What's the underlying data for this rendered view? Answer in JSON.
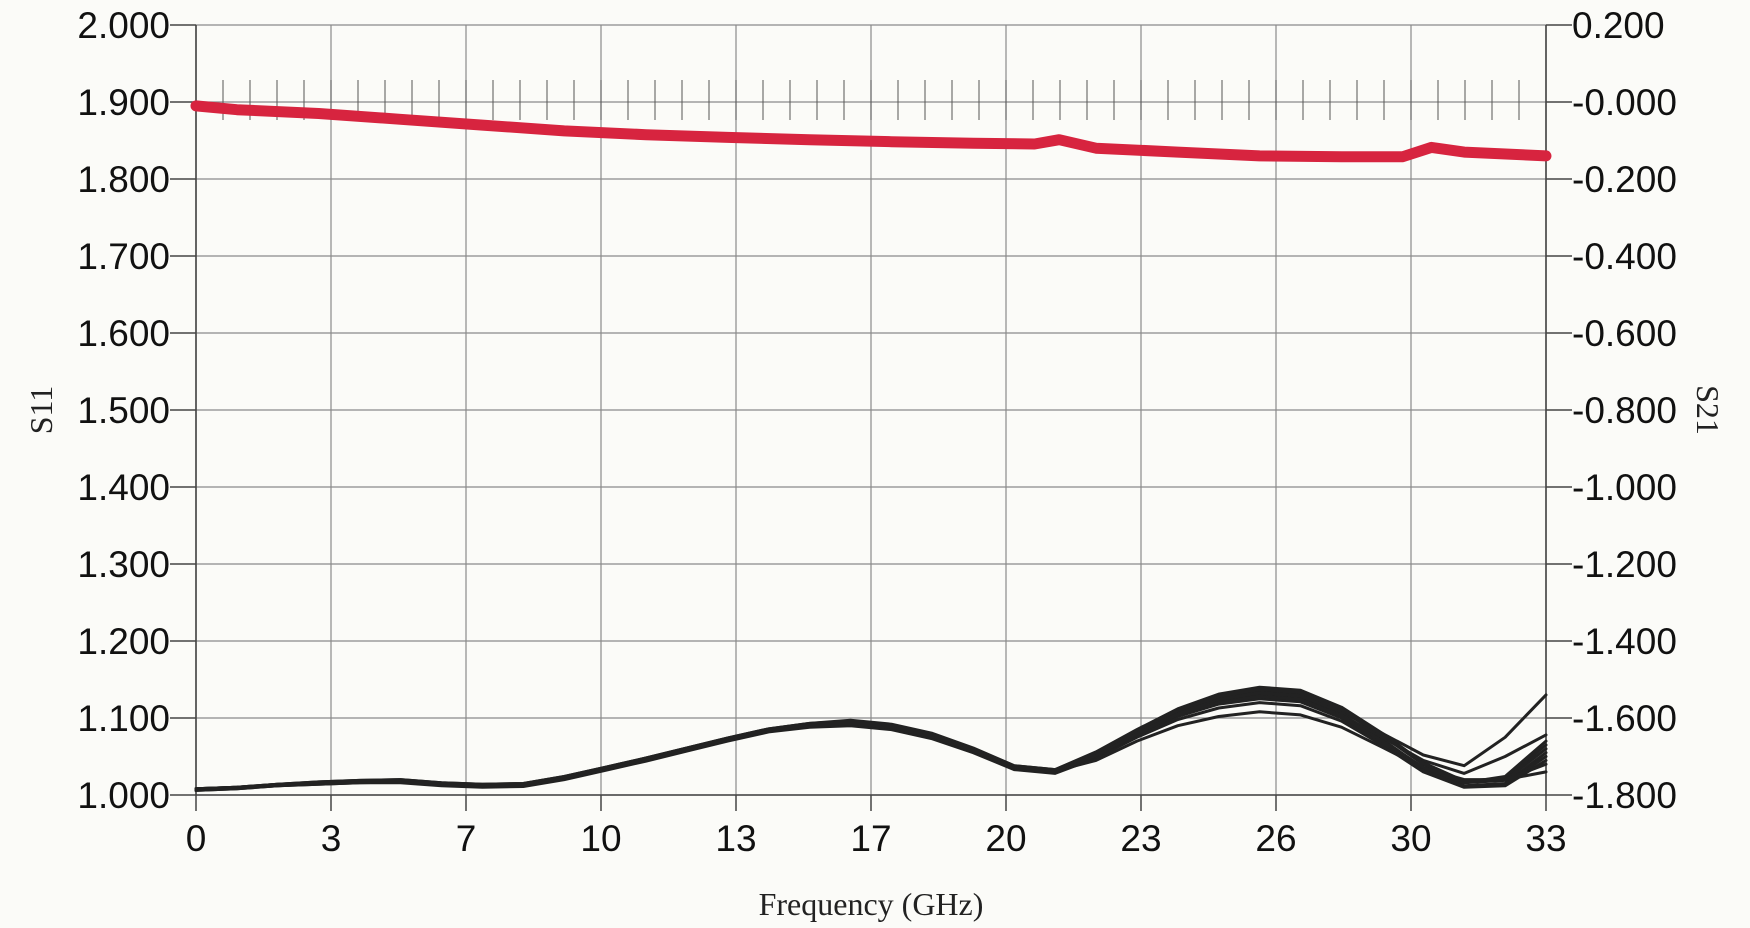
{
  "chart_data": {
    "type": "line",
    "xlabel": "Frequency (GHz)",
    "ylabel_left": "S11",
    "ylabel_right": "S21",
    "x_ticks": [
      "0",
      "3",
      "7",
      "10",
      "13",
      "17",
      "20",
      "23",
      "26",
      "30",
      "33"
    ],
    "x_tick_values": [
      0,
      3.3,
      6.6,
      9.9,
      13.2,
      16.5,
      19.8,
      23.1,
      26.4,
      29.7,
      33
    ],
    "xlim": [
      0,
      33
    ],
    "y_left_ticks": [
      "2.000",
      "1.900",
      "1.800",
      "1.700",
      "1.600",
      "1.500",
      "1.400",
      "1.300",
      "1.200",
      "1.100",
      "1.000"
    ],
    "ylim_left": [
      1.0,
      2.0
    ],
    "y_right_ticks": [
      "0.200",
      "-0.000",
      "-0.200",
      "-0.400",
      "-0.600",
      "-0.800",
      "-1.000",
      "-1.200",
      "-1.400",
      "-1.600",
      "-1.800"
    ],
    "ylim_right": [
      -1.8,
      0.2
    ],
    "grid": true,
    "series": [
      {
        "axis": "right",
        "color": "#d7243f",
        "x": [
          0,
          1,
          3,
          5,
          7,
          9,
          11,
          13,
          15,
          17,
          19,
          20.5,
          21.1,
          22,
          24,
          26,
          28,
          29.5,
          30.2,
          31,
          33
        ],
        "y": [
          -0.01,
          -0.02,
          -0.03,
          -0.045,
          -0.06,
          -0.075,
          -0.085,
          -0.092,
          -0.098,
          -0.103,
          -0.107,
          -0.109,
          -0.098,
          -0.12,
          -0.13,
          -0.14,
          -0.142,
          -0.142,
          -0.118,
          -0.13,
          -0.14
        ]
      },
      {
        "axis": "left",
        "color": "#222222",
        "x": [
          0,
          1,
          2,
          3,
          4,
          5,
          6,
          7,
          8,
          9,
          10,
          11,
          12,
          13,
          14,
          15,
          16,
          17,
          18,
          19,
          20,
          21,
          22,
          23,
          24,
          25,
          26,
          27,
          28,
          29,
          30,
          31,
          32,
          33
        ],
        "y": [
          1.007,
          1.009,
          1.013,
          1.016,
          1.018,
          1.018,
          1.014,
          1.012,
          1.013,
          1.022,
          1.034,
          1.046,
          1.059,
          1.072,
          1.084,
          1.091,
          1.094,
          1.089,
          1.077,
          1.058,
          1.036,
          1.031,
          1.052,
          1.08,
          1.105,
          1.122,
          1.13,
          1.126,
          1.105,
          1.072,
          1.035,
          1.012,
          1.015,
          1.055
        ]
      },
      {
        "axis": "left",
        "color": "#222222",
        "x": [
          0,
          1,
          2,
          3,
          4,
          5,
          6,
          7,
          8,
          9,
          10,
          11,
          12,
          13,
          14,
          15,
          16,
          17,
          18,
          19,
          20,
          21,
          22,
          23,
          24,
          25,
          26,
          27,
          28,
          29,
          30,
          31,
          32,
          33
        ],
        "y": [
          1.006,
          1.008,
          1.012,
          1.014,
          1.016,
          1.016,
          1.012,
          1.01,
          1.011,
          1.02,
          1.032,
          1.044,
          1.057,
          1.07,
          1.082,
          1.088,
          1.09,
          1.085,
          1.073,
          1.055,
          1.033,
          1.028,
          1.048,
          1.075,
          1.098,
          1.113,
          1.12,
          1.116,
          1.096,
          1.065,
          1.03,
          1.01,
          1.012,
          1.045
        ]
      },
      {
        "axis": "left",
        "color": "#222222",
        "x": [
          0,
          1,
          2,
          3,
          4,
          5,
          6,
          7,
          8,
          9,
          10,
          11,
          12,
          13,
          14,
          15,
          16,
          17,
          18,
          19,
          20,
          21,
          22,
          23,
          24,
          25,
          26,
          27,
          28,
          29,
          30,
          31,
          32,
          33
        ],
        "y": [
          1.008,
          1.01,
          1.014,
          1.017,
          1.019,
          1.02,
          1.016,
          1.014,
          1.015,
          1.024,
          1.036,
          1.048,
          1.061,
          1.074,
          1.086,
          1.093,
          1.097,
          1.092,
          1.08,
          1.061,
          1.038,
          1.033,
          1.056,
          1.085,
          1.112,
          1.131,
          1.14,
          1.136,
          1.114,
          1.08,
          1.042,
          1.018,
          1.022,
          1.065
        ]
      },
      {
        "axis": "left",
        "color": "#222222",
        "x": [
          0,
          1,
          2,
          3,
          4,
          5,
          6,
          7,
          8,
          9,
          10,
          11,
          12,
          13,
          14,
          15,
          16,
          17,
          18,
          19,
          20,
          21,
          22,
          23,
          24,
          25,
          26,
          27,
          28,
          29,
          30,
          31,
          32,
          33
        ],
        "y": [
          1.007,
          1.009,
          1.013,
          1.015,
          1.017,
          1.017,
          1.013,
          1.011,
          1.012,
          1.021,
          1.033,
          1.045,
          1.058,
          1.071,
          1.083,
          1.09,
          1.092,
          1.087,
          1.075,
          1.056,
          1.034,
          1.03,
          1.05,
          1.078,
          1.102,
          1.118,
          1.125,
          1.121,
          1.1,
          1.068,
          1.032,
          1.011,
          1.014,
          1.05
        ]
      },
      {
        "axis": "left",
        "color": "#222222",
        "x": [
          0,
          1,
          2,
          3,
          4,
          5,
          6,
          7,
          8,
          9,
          10,
          11,
          12,
          13,
          14,
          15,
          16,
          17,
          18,
          19,
          20,
          21,
          22,
          23,
          24,
          25,
          26,
          27,
          28,
          29,
          30,
          31,
          32,
          33
        ],
        "y": [
          1.008,
          1.01,
          1.014,
          1.016,
          1.018,
          1.019,
          1.015,
          1.013,
          1.014,
          1.023,
          1.035,
          1.047,
          1.06,
          1.073,
          1.085,
          1.092,
          1.095,
          1.09,
          1.078,
          1.06,
          1.037,
          1.032,
          1.054,
          1.083,
          1.109,
          1.127,
          1.136,
          1.132,
          1.11,
          1.077,
          1.04,
          1.016,
          1.019,
          1.06
        ]
      },
      {
        "axis": "left",
        "color": "#222222",
        "x": [
          0,
          1,
          2,
          3,
          4,
          5,
          6,
          7,
          8,
          9,
          10,
          11,
          12,
          13,
          14,
          15,
          16,
          17,
          18,
          19,
          20,
          21,
          22,
          23,
          24,
          25,
          26,
          27,
          28,
          29,
          30,
          31,
          32,
          33
        ],
        "y": [
          1.007,
          1.009,
          1.012,
          1.015,
          1.017,
          1.018,
          1.014,
          1.012,
          1.013,
          1.021,
          1.033,
          1.045,
          1.058,
          1.071,
          1.083,
          1.089,
          1.091,
          1.086,
          1.074,
          1.057,
          1.035,
          1.031,
          1.045,
          1.07,
          1.09,
          1.102,
          1.108,
          1.104,
          1.088,
          1.062,
          1.035,
          1.02,
          1.02,
          1.03
        ]
      },
      {
        "axis": "left",
        "color": "#222222",
        "x": [
          0,
          1,
          2,
          3,
          4,
          5,
          6,
          7,
          8,
          9,
          10,
          11,
          12,
          13,
          14,
          15,
          16,
          17,
          18,
          19,
          20,
          21,
          22,
          23,
          24,
          25,
          26,
          27,
          28,
          29,
          30,
          31,
          32,
          33
        ],
        "y": [
          1.006,
          1.008,
          1.012,
          1.014,
          1.016,
          1.017,
          1.013,
          1.011,
          1.012,
          1.021,
          1.033,
          1.045,
          1.058,
          1.071,
          1.083,
          1.09,
          1.093,
          1.088,
          1.076,
          1.058,
          1.036,
          1.03,
          1.051,
          1.079,
          1.104,
          1.12,
          1.128,
          1.124,
          1.104,
          1.075,
          1.045,
          1.028,
          1.05,
          1.078
        ]
      },
      {
        "axis": "left",
        "color": "#222222",
        "x": [
          0,
          1,
          2,
          3,
          4,
          5,
          6,
          7,
          8,
          9,
          10,
          11,
          12,
          13,
          14,
          15,
          16,
          17,
          18,
          19,
          20,
          21,
          22,
          23,
          24,
          25,
          26,
          27,
          28,
          29,
          30,
          31,
          32,
          33
        ],
        "y": [
          1.008,
          1.01,
          1.013,
          1.016,
          1.018,
          1.019,
          1.015,
          1.013,
          1.014,
          1.023,
          1.035,
          1.047,
          1.06,
          1.073,
          1.085,
          1.091,
          1.094,
          1.089,
          1.077,
          1.059,
          1.037,
          1.032,
          1.053,
          1.081,
          1.106,
          1.124,
          1.133,
          1.129,
          1.108,
          1.08,
          1.052,
          1.038,
          1.075,
          1.13
        ]
      },
      {
        "axis": "left",
        "color": "#222222",
        "x": [
          0,
          1,
          2,
          3,
          4,
          5,
          6,
          7,
          8,
          9,
          10,
          11,
          12,
          13,
          14,
          15,
          16,
          17,
          18,
          19,
          20,
          21,
          22,
          23,
          24,
          25,
          26,
          27,
          28,
          29,
          30,
          31,
          32,
          33
        ],
        "y": [
          1.007,
          1.009,
          1.013,
          1.016,
          1.017,
          1.018,
          1.014,
          1.012,
          1.013,
          1.022,
          1.034,
          1.046,
          1.059,
          1.072,
          1.084,
          1.09,
          1.093,
          1.088,
          1.076,
          1.058,
          1.035,
          1.03,
          1.052,
          1.08,
          1.105,
          1.12,
          1.128,
          1.124,
          1.102,
          1.07,
          1.036,
          1.016,
          1.024,
          1.07
        ]
      },
      {
        "axis": "left",
        "color": "#222222",
        "x": [
          0,
          1,
          2,
          3,
          4,
          5,
          6,
          7,
          8,
          9,
          10,
          11,
          12,
          13,
          14,
          15,
          16,
          17,
          18,
          19,
          20,
          21,
          22,
          23,
          24,
          25,
          26,
          27,
          28,
          29,
          30,
          31,
          32,
          33
        ],
        "y": [
          1.008,
          1.01,
          1.014,
          1.017,
          1.019,
          1.02,
          1.016,
          1.014,
          1.015,
          1.024,
          1.036,
          1.048,
          1.061,
          1.074,
          1.086,
          1.093,
          1.096,
          1.091,
          1.079,
          1.06,
          1.038,
          1.033,
          1.055,
          1.084,
          1.11,
          1.128,
          1.137,
          1.133,
          1.111,
          1.078,
          1.041,
          1.017,
          1.02,
          1.04
        ]
      }
    ]
  }
}
